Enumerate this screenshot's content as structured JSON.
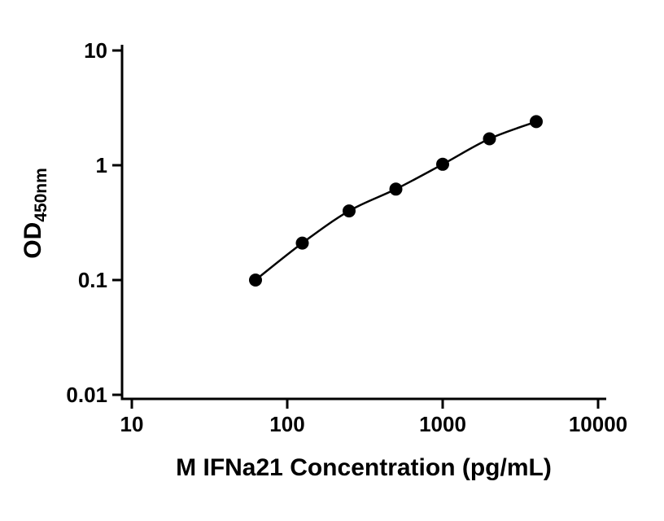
{
  "chart_data": {
    "type": "scatter",
    "title": "",
    "xlabel": "M IFNa21 Concentration (pg/mL)",
    "ylabel": "OD",
    "ylabel_sub": "450nm",
    "xscale": "log",
    "yscale": "log",
    "xlim": [
      10,
      10000
    ],
    "ylim": [
      0.01,
      10
    ],
    "x": [
      62.5,
      125,
      250,
      500,
      1000,
      2000,
      4000
    ],
    "y": [
      0.1,
      0.21,
      0.4,
      0.62,
      1.02,
      1.7,
      2.4
    ],
    "x_ticks": [
      10,
      100,
      1000,
      10000
    ],
    "x_tick_labels": [
      "10",
      "100",
      "1000",
      "10000"
    ],
    "y_ticks": [
      10,
      1,
      0.1,
      0.01
    ],
    "y_tick_labels": [
      "10",
      "1",
      "0.1",
      "0.01"
    ],
    "grid": false,
    "legend": null,
    "marker_color": "#000000",
    "line_color": "#000000",
    "axis_color": "#000000",
    "background": "#ffffff"
  }
}
